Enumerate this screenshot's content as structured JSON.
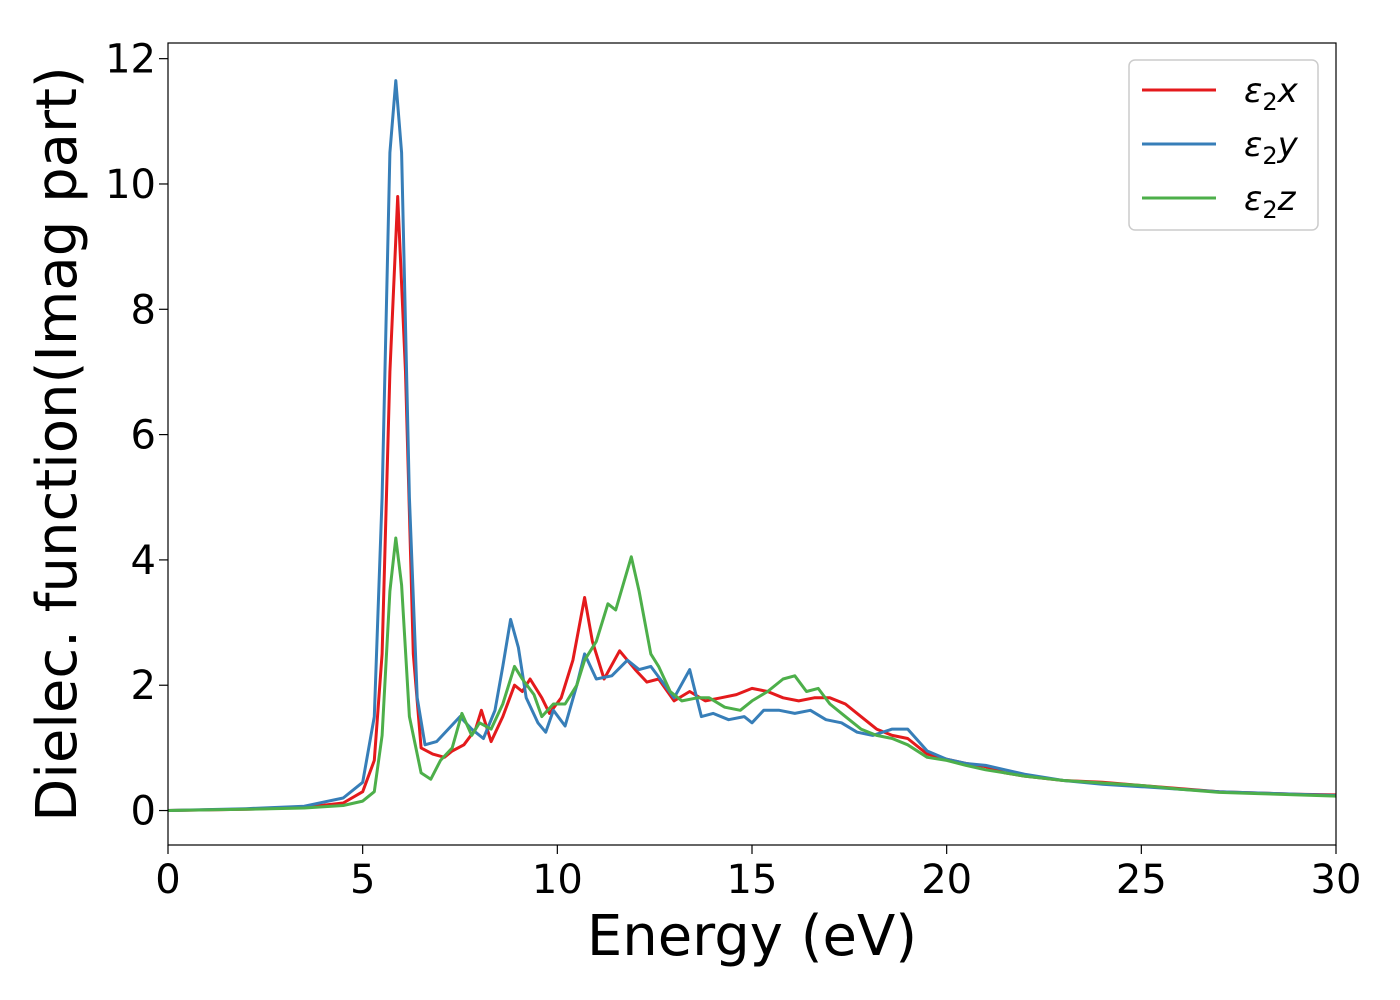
{
  "chart_data": {
    "type": "line",
    "xlabel": "Energy (eV)",
    "ylabel": "Dielec. function(Imag part)",
    "xlim": [
      0,
      30
    ],
    "ylim": [
      -0.55,
      12.25
    ],
    "xticks": [
      0,
      5,
      10,
      15,
      20,
      25,
      30
    ],
    "yticks": [
      0,
      2,
      4,
      6,
      8,
      10,
      12
    ],
    "xtick_labels": [
      "0",
      "5",
      "10",
      "15",
      "20",
      "25",
      "30"
    ],
    "ytick_labels": [
      "0",
      "2",
      "4",
      "6",
      "8",
      "10",
      "12"
    ],
    "grid": false,
    "legend_position": "top-right",
    "series": [
      {
        "name": "ε2x",
        "legend_base": "ε",
        "legend_sub": "2",
        "legend_suffix": "x",
        "color": "#e41a1c",
        "points": [
          [
            0,
            0
          ],
          [
            2,
            0.02
          ],
          [
            3.5,
            0.05
          ],
          [
            4.5,
            0.12
          ],
          [
            5.0,
            0.3
          ],
          [
            5.3,
            0.8
          ],
          [
            5.5,
            2.5
          ],
          [
            5.7,
            7.0
          ],
          [
            5.9,
            9.8
          ],
          [
            6.1,
            7.0
          ],
          [
            6.3,
            2.5
          ],
          [
            6.5,
            1.0
          ],
          [
            6.8,
            0.9
          ],
          [
            7.1,
            0.85
          ],
          [
            7.3,
            0.95
          ],
          [
            7.6,
            1.05
          ],
          [
            7.9,
            1.3
          ],
          [
            8.05,
            1.6
          ],
          [
            8.3,
            1.1
          ],
          [
            8.6,
            1.5
          ],
          [
            8.9,
            2.0
          ],
          [
            9.1,
            1.9
          ],
          [
            9.3,
            2.1
          ],
          [
            9.6,
            1.8
          ],
          [
            9.8,
            1.55
          ],
          [
            10.1,
            1.8
          ],
          [
            10.4,
            2.4
          ],
          [
            10.7,
            3.4
          ],
          [
            10.9,
            2.7
          ],
          [
            11.2,
            2.1
          ],
          [
            11.6,
            2.55
          ],
          [
            12.0,
            2.25
          ],
          [
            12.3,
            2.05
          ],
          [
            12.6,
            2.1
          ],
          [
            13.0,
            1.75
          ],
          [
            13.4,
            1.9
          ],
          [
            13.8,
            1.75
          ],
          [
            14.2,
            1.8
          ],
          [
            14.6,
            1.85
          ],
          [
            15.0,
            1.95
          ],
          [
            15.4,
            1.9
          ],
          [
            15.8,
            1.8
          ],
          [
            16.2,
            1.75
          ],
          [
            16.6,
            1.8
          ],
          [
            17.0,
            1.8
          ],
          [
            17.4,
            1.7
          ],
          [
            17.8,
            1.5
          ],
          [
            18.2,
            1.3
          ],
          [
            18.6,
            1.2
          ],
          [
            19.0,
            1.15
          ],
          [
            19.5,
            0.9
          ],
          [
            20.0,
            0.82
          ],
          [
            20.5,
            0.75
          ],
          [
            21.0,
            0.7
          ],
          [
            21.5,
            0.6
          ],
          [
            22,
            0.55
          ],
          [
            23,
            0.48
          ],
          [
            24,
            0.45
          ],
          [
            25,
            0.4
          ],
          [
            26,
            0.35
          ],
          [
            27,
            0.3
          ],
          [
            28,
            0.28
          ],
          [
            29,
            0.26
          ],
          [
            30,
            0.25
          ]
        ]
      },
      {
        "name": "ε2y",
        "legend_base": "ε",
        "legend_sub": "2",
        "legend_suffix": "y",
        "color": "#377eb8",
        "points": [
          [
            0,
            0
          ],
          [
            2,
            0.03
          ],
          [
            3.5,
            0.07
          ],
          [
            4.5,
            0.2
          ],
          [
            5.0,
            0.45
          ],
          [
            5.3,
            1.5
          ],
          [
            5.5,
            5.0
          ],
          [
            5.7,
            10.5
          ],
          [
            5.85,
            11.65
          ],
          [
            6.0,
            10.5
          ],
          [
            6.2,
            5.0
          ],
          [
            6.4,
            1.8
          ],
          [
            6.6,
            1.05
          ],
          [
            6.9,
            1.1
          ],
          [
            7.2,
            1.3
          ],
          [
            7.5,
            1.5
          ],
          [
            7.8,
            1.3
          ],
          [
            8.1,
            1.15
          ],
          [
            8.4,
            1.6
          ],
          [
            8.6,
            2.3
          ],
          [
            8.8,
            3.05
          ],
          [
            9.0,
            2.6
          ],
          [
            9.2,
            1.8
          ],
          [
            9.5,
            1.4
          ],
          [
            9.7,
            1.25
          ],
          [
            9.9,
            1.6
          ],
          [
            10.2,
            1.35
          ],
          [
            10.5,
            2.0
          ],
          [
            10.7,
            2.5
          ],
          [
            11.0,
            2.1
          ],
          [
            11.4,
            2.15
          ],
          [
            11.8,
            2.4
          ],
          [
            12.1,
            2.25
          ],
          [
            12.4,
            2.3
          ],
          [
            12.7,
            2.05
          ],
          [
            13.0,
            1.8
          ],
          [
            13.4,
            2.25
          ],
          [
            13.7,
            1.5
          ],
          [
            14.0,
            1.55
          ],
          [
            14.4,
            1.45
          ],
          [
            14.8,
            1.5
          ],
          [
            15.0,
            1.4
          ],
          [
            15.3,
            1.6
          ],
          [
            15.7,
            1.6
          ],
          [
            16.1,
            1.55
          ],
          [
            16.5,
            1.6
          ],
          [
            16.9,
            1.45
          ],
          [
            17.3,
            1.4
          ],
          [
            17.7,
            1.25
          ],
          [
            18.1,
            1.2
          ],
          [
            18.6,
            1.3
          ],
          [
            19.0,
            1.3
          ],
          [
            19.5,
            0.95
          ],
          [
            20.0,
            0.82
          ],
          [
            20.5,
            0.75
          ],
          [
            21.0,
            0.72
          ],
          [
            21.5,
            0.65
          ],
          [
            22,
            0.58
          ],
          [
            23,
            0.48
          ],
          [
            24,
            0.42
          ],
          [
            25,
            0.38
          ],
          [
            26,
            0.34
          ],
          [
            27,
            0.3
          ],
          [
            28,
            0.28
          ],
          [
            29,
            0.26
          ],
          [
            30,
            0.24
          ]
        ]
      },
      {
        "name": "ε2z",
        "legend_base": "ε",
        "legend_sub": "2",
        "legend_suffix": "z",
        "color": "#4daf4a",
        "points": [
          [
            0,
            0
          ],
          [
            2,
            0.02
          ],
          [
            3.5,
            0.04
          ],
          [
            4.5,
            0.08
          ],
          [
            5.0,
            0.15
          ],
          [
            5.3,
            0.3
          ],
          [
            5.5,
            1.2
          ],
          [
            5.7,
            3.5
          ],
          [
            5.85,
            4.35
          ],
          [
            6.0,
            3.6
          ],
          [
            6.2,
            1.5
          ],
          [
            6.5,
            0.6
          ],
          [
            6.75,
            0.5
          ],
          [
            7.0,
            0.8
          ],
          [
            7.3,
            1.0
          ],
          [
            7.55,
            1.55
          ],
          [
            7.8,
            1.2
          ],
          [
            8.0,
            1.4
          ],
          [
            8.3,
            1.3
          ],
          [
            8.6,
            1.7
          ],
          [
            8.9,
            2.3
          ],
          [
            9.1,
            2.1
          ],
          [
            9.4,
            1.85
          ],
          [
            9.6,
            1.5
          ],
          [
            9.9,
            1.7
          ],
          [
            10.2,
            1.7
          ],
          [
            10.5,
            2.0
          ],
          [
            10.7,
            2.4
          ],
          [
            11.0,
            2.7
          ],
          [
            11.3,
            3.3
          ],
          [
            11.5,
            3.2
          ],
          [
            11.9,
            4.05
          ],
          [
            12.1,
            3.5
          ],
          [
            12.4,
            2.5
          ],
          [
            12.6,
            2.3
          ],
          [
            12.9,
            1.9
          ],
          [
            13.2,
            1.75
          ],
          [
            13.6,
            1.8
          ],
          [
            13.9,
            1.8
          ],
          [
            14.3,
            1.65
          ],
          [
            14.7,
            1.6
          ],
          [
            15.0,
            1.75
          ],
          [
            15.4,
            1.9
          ],
          [
            15.8,
            2.1
          ],
          [
            16.1,
            2.15
          ],
          [
            16.4,
            1.9
          ],
          [
            16.7,
            1.95
          ],
          [
            17.0,
            1.7
          ],
          [
            17.4,
            1.5
          ],
          [
            17.8,
            1.3
          ],
          [
            18.2,
            1.2
          ],
          [
            18.6,
            1.15
          ],
          [
            19.0,
            1.05
          ],
          [
            19.5,
            0.85
          ],
          [
            20.0,
            0.8
          ],
          [
            20.5,
            0.72
          ],
          [
            21.0,
            0.65
          ],
          [
            21.5,
            0.6
          ],
          [
            22,
            0.55
          ],
          [
            23,
            0.48
          ],
          [
            24,
            0.44
          ],
          [
            25,
            0.4
          ],
          [
            26,
            0.34
          ],
          [
            27,
            0.29
          ],
          [
            28,
            0.27
          ],
          [
            29,
            0.25
          ],
          [
            30,
            0.23
          ]
        ]
      }
    ]
  }
}
